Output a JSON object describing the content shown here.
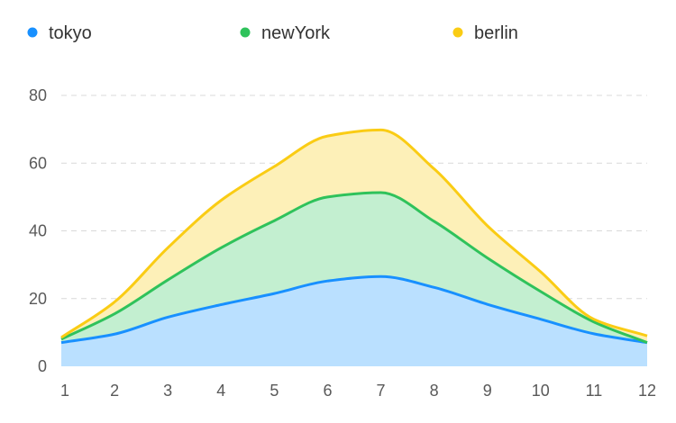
{
  "chart_data": {
    "type": "area",
    "stacked": true,
    "x": [
      1,
      2,
      3,
      4,
      5,
      6,
      7,
      8,
      9,
      10,
      11,
      12
    ],
    "series": [
      {
        "name": "tokyo",
        "color": "#1890ff",
        "fill": "#bae0ff",
        "values": [
          7,
          9.5,
          14.5,
          18.2,
          21.5,
          25.2,
          26.5,
          23.3,
          18.3,
          13.9,
          9.6,
          7.0
        ]
      },
      {
        "name": "newYork",
        "color": "#2fc25b",
        "fill": "#c3efd0",
        "values": [
          1,
          6.0,
          11.0,
          16.8,
          21.5,
          24.8,
          24.8,
          19.5,
          13.7,
          8.2,
          3.5,
          0
        ]
      },
      {
        "name": "berlin",
        "color": "#facc14",
        "fill": "#fdf0b8",
        "values": [
          0.5,
          3.5,
          9.5,
          14.0,
          16.0,
          18.0,
          18.5,
          15.5,
          9.5,
          5.8,
          0.8,
          2.0
        ]
      }
    ],
    "ylim": [
      0,
      80
    ],
    "yticks": [
      0,
      20,
      40,
      60,
      80
    ],
    "xticks": [
      "1",
      "2",
      "3",
      "4",
      "5",
      "6",
      "7",
      "8",
      "9",
      "10",
      "11",
      "12"
    ],
    "grid": true,
    "legend_position": "top"
  }
}
